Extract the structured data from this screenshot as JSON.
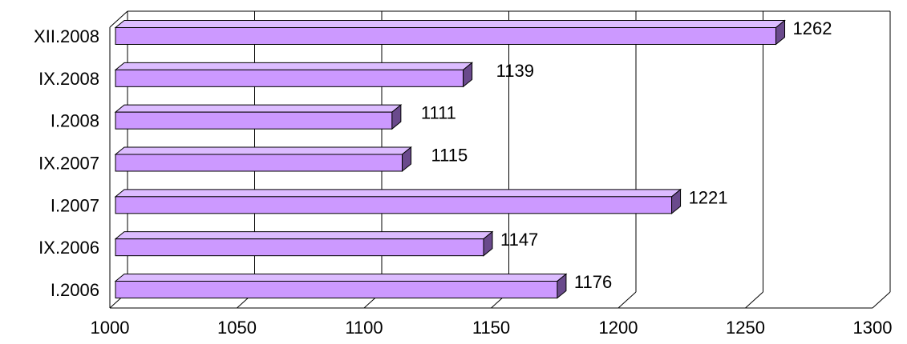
{
  "chart_data": {
    "type": "bar",
    "orientation": "horizontal",
    "style": "3d",
    "categories": [
      "I.2006",
      "IX.2006",
      "I.2007",
      "IX.2007",
      "I.2008",
      "IX.2008",
      "XII.2008"
    ],
    "values": [
      1176,
      1147,
      1221,
      1115,
      1111,
      1139,
      1262
    ],
    "value_labels": [
      "1176",
      "1147",
      "1221",
      "1115",
      "1111",
      "1139",
      "1262"
    ],
    "x_ticks": [
      "1000",
      "1050",
      "1100",
      "1150",
      "1200",
      "1250",
      "1300"
    ],
    "xlim": [
      1000,
      1300
    ],
    "grid": true,
    "legend": "none",
    "title": "",
    "xlabel": "",
    "ylabel": "",
    "colors": {
      "bar_front": "#cc99ff",
      "bar_top": "#dcbcff",
      "bar_side": "#6a4a8c",
      "bar_stroke": "#000000",
      "grid": "#000000"
    }
  }
}
